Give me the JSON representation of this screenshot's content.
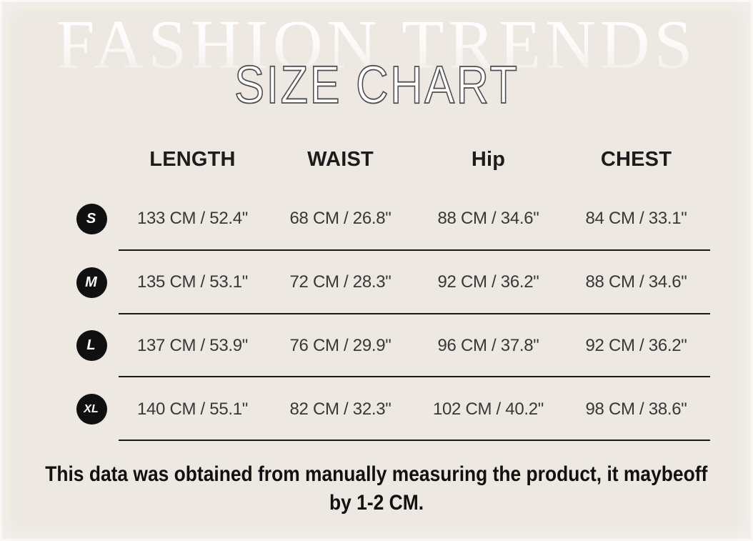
{
  "header": {
    "watermark": "FASHION TRENDS",
    "title": "SIZE CHART"
  },
  "chart_data": {
    "type": "table",
    "title": "SIZE CHART",
    "columns": [
      "LENGTH",
      "WAIST",
      "Hip",
      "CHEST"
    ],
    "rows": [
      {
        "size": "S",
        "cells": [
          "133  CM /  52.4\"",
          "68 CM /  26.8\"",
          "88 CM /  34.6\"",
          "84 CM /  33.1\""
        ]
      },
      {
        "size": "M",
        "cells": [
          "135  CM /  53.1\"",
          "72 CM /  28.3\"",
          "92 CM /  36.2\"",
          "88 CM /  34.6\""
        ]
      },
      {
        "size": "L",
        "cells": [
          "137  CM /  53.9\"",
          "76 CM /  29.9\"",
          "96 CM /  37.8\"",
          "92 CM /  36.2\""
        ]
      },
      {
        "size": "XL",
        "cells": [
          "140  CM /  55.1\"",
          "82 CM /  32.3\"",
          "102 CM /  40.2\"",
          "98 CM /  38.6\""
        ]
      }
    ]
  },
  "note": {
    "line1": "This data was obtained from manually measuring the product, it maybeoff",
    "line2": "by 1-2 CM."
  },
  "colors": {
    "background": "#EDE8E1",
    "badge": "#101010",
    "divider": "#191919",
    "header_text": "#1C1C1C",
    "value_text": "#383838",
    "title_fill": "#FFFFFF",
    "title_outline": "#4F4F4F",
    "watermark": "#FFFFFF"
  }
}
